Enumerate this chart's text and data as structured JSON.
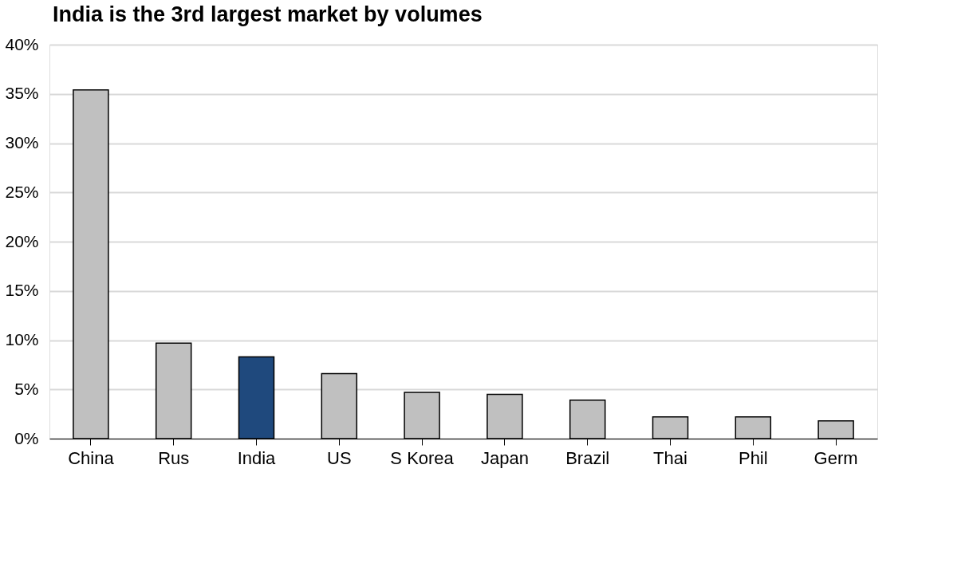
{
  "chart_data": {
    "type": "bar",
    "title": "India is the 3rd largest market by volumes",
    "categories": [
      "China",
      "Rus",
      "India",
      "US",
      "S Korea",
      "Japan",
      "Brazil",
      "Thai",
      "Phil",
      "Germ"
    ],
    "values": [
      35.4,
      9.7,
      8.3,
      6.6,
      4.7,
      4.5,
      3.9,
      2.2,
      2.2,
      1.8
    ],
    "colors": [
      "#c0c0c0",
      "#c0c0c0",
      "#1f497d",
      "#c0c0c0",
      "#c0c0c0",
      "#c0c0c0",
      "#c0c0c0",
      "#c0c0c0",
      "#c0c0c0",
      "#c0c0c0"
    ],
    "ylim": [
      0,
      40
    ],
    "yticks": [
      {
        "value": 0,
        "label": "0%"
      },
      {
        "value": 5,
        "label": "5%"
      },
      {
        "value": 10,
        "label": "10%"
      },
      {
        "value": 15,
        "label": "15%"
      },
      {
        "value": 20,
        "label": "20%"
      },
      {
        "value": 25,
        "label": "25%"
      },
      {
        "value": 30,
        "label": "30%"
      },
      {
        "value": 35,
        "label": "35%"
      },
      {
        "value": 40,
        "label": "40%"
      }
    ],
    "grid": "y"
  }
}
